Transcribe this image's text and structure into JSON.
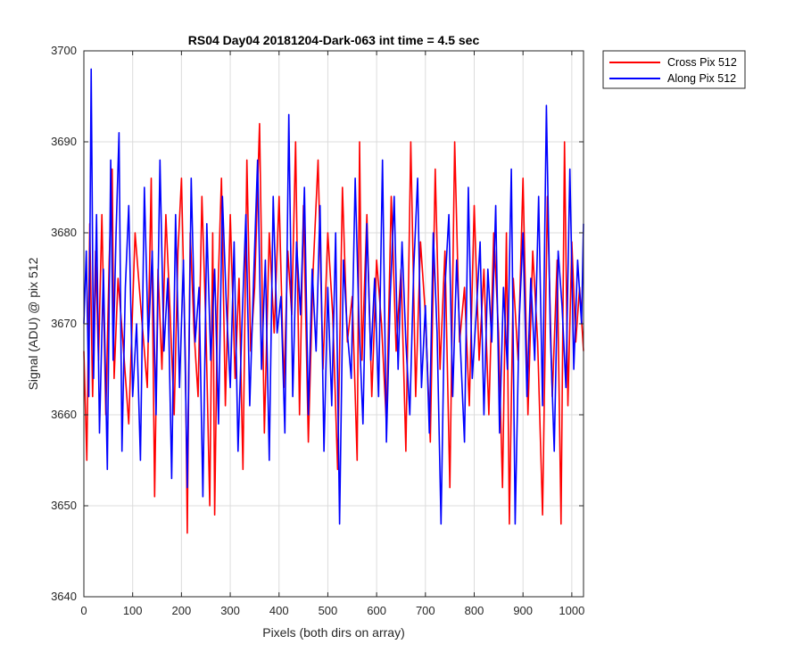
{
  "chart_data": {
    "type": "line",
    "title": "RS04 Day04 20181204-Dark-063 int time = 4.5 sec",
    "xlabel": "Pixels (both dirs on array)",
    "ylabel": "Signal (ADU) @ pix 512",
    "xlim": [
      0,
      1024
    ],
    "ylim": [
      3640,
      3700
    ],
    "xticks": [
      0,
      100,
      200,
      300,
      400,
      500,
      600,
      700,
      800,
      900,
      1000
    ],
    "yticks": [
      3640,
      3650,
      3660,
      3670,
      3680,
      3690,
      3700
    ],
    "grid": true,
    "legend_position": "outside-top-right",
    "series": [
      {
        "name": "Cross Pix 512",
        "color": "#ff0000",
        "x": [
          0,
          6,
          12,
          18,
          24,
          30,
          37,
          45,
          52,
          58,
          62,
          70,
          80,
          92,
          105,
          118,
          130,
          138,
          145,
          152,
          160,
          168,
          176,
          185,
          193,
          200,
          208,
          212,
          218,
          226,
          234,
          242,
          250,
          258,
          264,
          268,
          274,
          282,
          290,
          300,
          310,
          318,
          326,
          334,
          342,
          350,
          360,
          370,
          380,
          390,
          400,
          410,
          418,
          426,
          434,
          442,
          450,
          460,
          470,
          480,
          490,
          500,
          510,
          520,
          530,
          540,
          550,
          560,
          565,
          570,
          580,
          590,
          600,
          610,
          620,
          630,
          640,
          650,
          660,
          670,
          680,
          690,
          700,
          710,
          720,
          730,
          740,
          750,
          760,
          770,
          780,
          790,
          800,
          810,
          820,
          830,
          840,
          850,
          858,
          866,
          872,
          880,
          890,
          900,
          910,
          920,
          930,
          940,
          950,
          960,
          970,
          978,
          985,
          992,
          1000,
          1008,
          1016,
          1024
        ],
        "values": [
          3667,
          3655,
          3681,
          3662,
          3678,
          3666,
          3682,
          3660,
          3677,
          3687,
          3664,
          3675,
          3668,
          3659,
          3680,
          3671,
          3663,
          3686,
          3651,
          3676,
          3665,
          3682,
          3672,
          3660,
          3678,
          3686,
          3666,
          3647,
          3680,
          3669,
          3662,
          3684,
          3670,
          3650,
          3680,
          3649,
          3672,
          3686,
          3661,
          3682,
          3664,
          3675,
          3654,
          3688,
          3667,
          3674,
          3692,
          3658,
          3680,
          3669,
          3684,
          3663,
          3678,
          3671,
          3690,
          3660,
          3683,
          3657,
          3676,
          3688,
          3665,
          3680,
          3671,
          3654,
          3685,
          3668,
          3673,
          3655,
          3690,
          3666,
          3682,
          3662,
          3677,
          3670,
          3659,
          3684,
          3667,
          3676,
          3656,
          3690,
          3662,
          3679,
          3671,
          3657,
          3687,
          3665,
          3678,
          3652,
          3690,
          3668,
          3674,
          3661,
          3683,
          3666,
          3676,
          3660,
          3680,
          3669,
          3652,
          3680,
          3648,
          3675,
          3666,
          3686,
          3660,
          3678,
          3668,
          3649,
          3684,
          3662,
          3677,
          3648,
          3690,
          3661,
          3679,
          3668,
          3674,
          3667
        ]
      },
      {
        "name": "Along Pix 512",
        "color": "#0000ff",
        "x": [
          0,
          5,
          10,
          15,
          20,
          26,
          32,
          40,
          48,
          55,
          60,
          66,
          72,
          78,
          85,
          92,
          100,
          108,
          116,
          124,
          132,
          140,
          148,
          156,
          164,
          172,
          180,
          188,
          196,
          204,
          212,
          220,
          228,
          236,
          244,
          252,
          260,
          268,
          276,
          284,
          292,
          300,
          308,
          316,
          324,
          332,
          340,
          348,
          356,
          364,
          372,
          380,
          388,
          396,
          404,
          412,
          420,
          428,
          436,
          444,
          452,
          460,
          468,
          476,
          484,
          492,
          500,
          508,
          516,
          524,
          532,
          540,
          548,
          556,
          564,
          572,
          580,
          588,
          596,
          604,
          612,
          620,
          628,
          636,
          644,
          652,
          660,
          668,
          676,
          684,
          692,
          700,
          708,
          716,
          724,
          732,
          740,
          748,
          756,
          764,
          772,
          780,
          788,
          796,
          804,
          812,
          820,
          828,
          836,
          844,
          852,
          860,
          868,
          876,
          884,
          892,
          900,
          908,
          916,
          924,
          932,
          940,
          948,
          956,
          964,
          972,
          980,
          988,
          996,
          1004,
          1012,
          1020,
          1024
        ],
        "values": [
          3670,
          3678,
          3662,
          3698,
          3664,
          3682,
          3658,
          3676,
          3654,
          3688,
          3666,
          3680,
          3691,
          3656,
          3674,
          3683,
          3662,
          3670,
          3655,
          3685,
          3668,
          3678,
          3660,
          3688,
          3667,
          3675,
          3653,
          3682,
          3663,
          3677,
          3652,
          3686,
          3668,
          3674,
          3651,
          3681,
          3666,
          3676,
          3659,
          3684,
          3672,
          3663,
          3679,
          3656,
          3670,
          3682,
          3661,
          3675,
          3688,
          3665,
          3677,
          3655,
          3684,
          3669,
          3673,
          3658,
          3693,
          3662,
          3679,
          3671,
          3685,
          3660,
          3676,
          3667,
          3683,
          3656,
          3674,
          3661,
          3680,
          3648,
          3677,
          3669,
          3664,
          3686,
          3670,
          3659,
          3681,
          3666,
          3675,
          3662,
          3688,
          3657,
          3673,
          3684,
          3665,
          3679,
          3668,
          3660,
          3676,
          3686,
          3663,
          3672,
          3658,
          3680,
          3669,
          3648,
          3674,
          3682,
          3662,
          3677,
          3667,
          3657,
          3685,
          3664,
          3671,
          3679,
          3660,
          3676,
          3668,
          3683,
          3658,
          3674,
          3665,
          3687,
          3648,
          3670,
          3680,
          3662,
          3675,
          3666,
          3684,
          3661,
          3694,
          3669,
          3656,
          3678,
          3672,
          3663,
          3687,
          3665,
          3677,
          3670,
          3681
        ]
      }
    ]
  }
}
